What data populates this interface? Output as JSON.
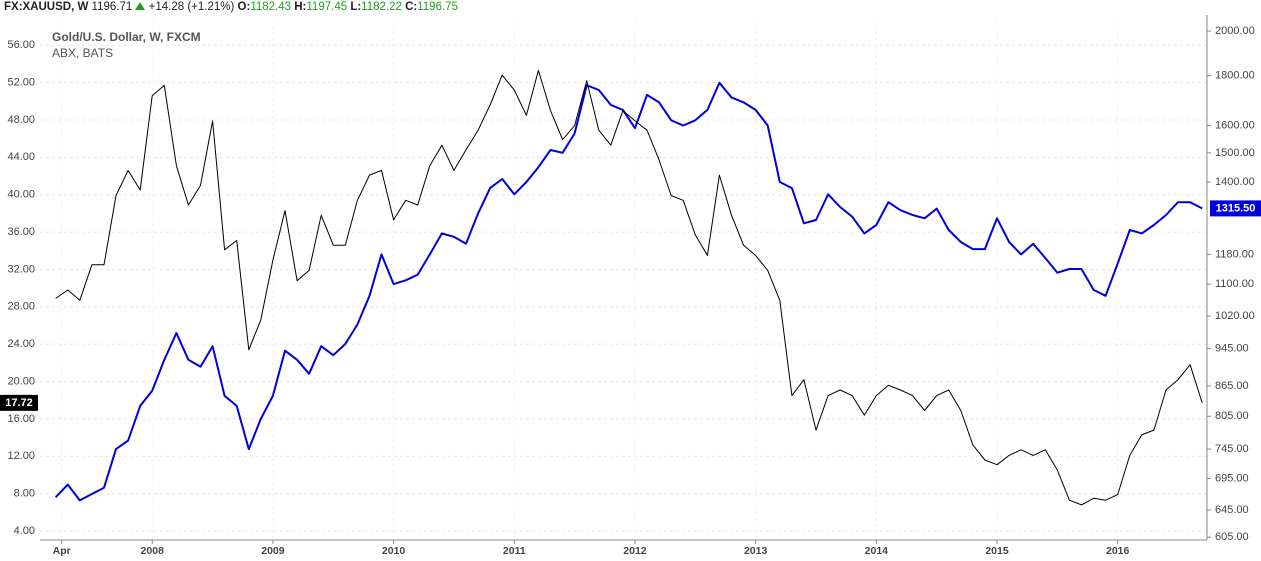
{
  "header": {
    "symbol": "FX:XAUUSD, W",
    "last": "1196.71",
    "change": "+14.28 (+1.21%)",
    "open_label": "O:",
    "open": "1182.43",
    "high_label": "H:",
    "high": "1197.45",
    "low_label": "L:",
    "low": "1182.22",
    "close_label": "C:",
    "close": "1196.75"
  },
  "chart_data": {
    "type": "line",
    "grid": true,
    "y2log": true,
    "legend": "top-left",
    "x": [
      2007.2,
      2007.3,
      2007.4,
      2007.5,
      2007.6,
      2007.7,
      2007.8,
      2007.9,
      2008.0,
      2008.1,
      2008.2,
      2008.3,
      2008.4,
      2008.5,
      2008.6,
      2008.7,
      2008.8,
      2008.9,
      2009.0,
      2009.1,
      2009.2,
      2009.3,
      2009.4,
      2009.5,
      2009.6,
      2009.7,
      2009.8,
      2009.9,
      2010.0,
      2010.1,
      2010.2,
      2010.3,
      2010.4,
      2010.5,
      2010.6,
      2010.7,
      2010.8,
      2010.9,
      2011.0,
      2011.1,
      2011.2,
      2011.3,
      2011.4,
      2011.5,
      2011.6,
      2011.7,
      2011.8,
      2011.9,
      2012.0,
      2012.1,
      2012.2,
      2012.3,
      2012.4,
      2012.5,
      2012.6,
      2012.7,
      2012.8,
      2012.9,
      2013.0,
      2013.1,
      2013.2,
      2013.3,
      2013.4,
      2013.5,
      2013.6,
      2013.7,
      2013.8,
      2013.9,
      2014.0,
      2014.1,
      2014.2,
      2014.3,
      2014.4,
      2014.5,
      2014.6,
      2014.7,
      2014.8,
      2014.9,
      2015.0,
      2015.1,
      2015.2,
      2015.3,
      2015.4,
      2015.5,
      2015.6,
      2015.7,
      2015.8,
      2015.9,
      2016.0,
      2016.1,
      2016.2,
      2016.3,
      2016.4,
      2016.5,
      2016.6,
      2016.7
    ],
    "xlim": [
      2007.07,
      2016.74
    ],
    "xticks": [
      {
        "value": 2007.25,
        "label": "Apr"
      },
      2008,
      2009,
      2010,
      2011,
      2012,
      2013,
      2014,
      2015,
      2016
    ],
    "ylim": [
      3.04,
      58.7
    ],
    "yticks": [
      {
        "value": 4,
        "label": "4.00"
      },
      {
        "value": 8,
        "label": "8.00"
      },
      {
        "value": 12,
        "label": "12.00"
      },
      {
        "value": 16,
        "label": "16.00"
      },
      {
        "value": 20,
        "label": "20.00"
      },
      {
        "value": 24,
        "label": "24.00"
      },
      {
        "value": 28,
        "label": "28.00"
      },
      {
        "value": 32,
        "label": "32.00"
      },
      {
        "value": 36,
        "label": "36.00"
      },
      {
        "value": 40,
        "label": "40.00"
      },
      {
        "value": 44,
        "label": "44.00"
      },
      {
        "value": 48,
        "label": "48.00"
      },
      {
        "value": 52,
        "label": "52.00"
      },
      {
        "value": 56,
        "label": "56.00"
      }
    ],
    "y2lim": [
      601,
      2053
    ],
    "y2ticks": [
      {
        "value": 605,
        "label": "605.00"
      },
      {
        "value": 645,
        "label": "645.00"
      },
      {
        "value": 695,
        "label": "695.00"
      },
      {
        "value": 745,
        "label": "745.00"
      },
      {
        "value": 805,
        "label": "805.00"
      },
      {
        "value": 865,
        "label": "865.00"
      },
      {
        "value": 945,
        "label": "945.00"
      },
      {
        "value": 1020,
        "label": "1020.00"
      },
      {
        "value": 1100,
        "label": "1100.00"
      },
      {
        "value": 1180,
        "label": "1180.00"
      },
      {
        "value": 1400,
        "label": "1400.00"
      },
      {
        "value": 1500,
        "label": "1500.00"
      },
      {
        "value": 1600,
        "label": "1600.00"
      },
      {
        "value": 1800,
        "label": "1800.00"
      },
      {
        "value": 2000,
        "label": "2000.00"
      }
    ],
    "series": [
      {
        "name": "Gold/U.S. Dollar, W, FXCM",
        "color": "#0000dd",
        "axis": "y2",
        "current": {
          "value": 1315.5,
          "label": "1315.50"
        },
        "values": [
          665,
          685,
          660,
          670,
          680,
          745,
          760,
          825,
          855,
          920,
          980,
          920,
          905,
          950,
          845,
          825,
          745,
          800,
          845,
          940,
          920,
          890,
          950,
          930,
          955,
          1000,
          1070,
          1180,
          1100,
          1110,
          1125,
          1180,
          1240,
          1230,
          1210,
          1300,
          1380,
          1410,
          1360,
          1400,
          1450,
          1510,
          1500,
          1570,
          1760,
          1740,
          1680,
          1660,
          1590,
          1720,
          1690,
          1620,
          1600,
          1620,
          1660,
          1770,
          1710,
          1690,
          1660,
          1600,
          1400,
          1380,
          1270,
          1280,
          1360,
          1320,
          1290,
          1240,
          1265,
          1335,
          1310,
          1295,
          1285,
          1315,
          1250,
          1215,
          1195,
          1195,
          1285,
          1215,
          1180,
          1210,
          1170,
          1130,
          1140,
          1140,
          1085,
          1070,
          1155,
          1250,
          1240,
          1265,
          1295,
          1335,
          1335,
          1315.5
        ]
      },
      {
        "name": "ABX, BATS",
        "color": "#000000",
        "axis": "y",
        "current": {
          "value": 17.72,
          "label": "17.72"
        },
        "values": [
          28.9,
          29.8,
          28.7,
          32.5,
          32.5,
          39.9,
          42.6,
          40.5,
          50.6,
          51.7,
          43.1,
          38.9,
          41.0,
          47.9,
          34.1,
          35.1,
          23.4,
          26.6,
          33.0,
          38.3,
          30.8,
          31.9,
          37.8,
          34.6,
          34.6,
          39.4,
          42.1,
          42.6,
          37.3,
          39.4,
          38.9,
          43.1,
          45.3,
          42.6,
          44.8,
          46.9,
          49.6,
          52.8,
          51.2,
          48.5,
          53.3,
          49.0,
          45.9,
          47.4,
          52.2,
          46.9,
          45.3,
          49.0,
          47.9,
          46.9,
          43.7,
          39.9,
          39.4,
          35.7,
          33.5,
          42.1,
          37.8,
          34.6,
          33.5,
          31.9,
          28.7,
          18.5,
          20.2,
          14.8,
          18.5,
          19.1,
          18.5,
          16.4,
          18.5,
          19.6,
          19.1,
          18.5,
          16.9,
          18.5,
          19.1,
          16.9,
          13.2,
          11.6,
          11.1,
          12.1,
          12.7,
          12.1,
          12.7,
          10.5,
          7.3,
          6.8,
          7.5,
          7.3,
          7.9,
          12.1,
          14.3,
          14.8,
          19.1,
          20.2,
          21.8,
          17.72
        ]
      }
    ]
  }
}
